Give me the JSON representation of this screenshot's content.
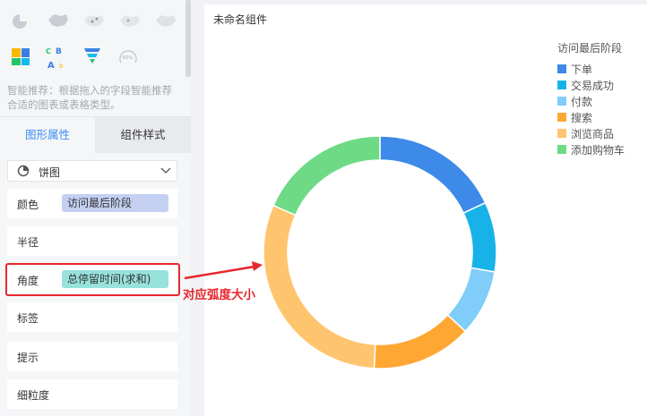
{
  "left_panel": {
    "chart_type_icons": [
      "pie-chart-icon",
      "china-map-icon",
      "china-scatter-map-icon",
      "china-flow-map-icon",
      "china-heat-map-icon",
      "treemap-icon",
      "word-cloud-icon",
      "funnel-icon",
      "gauge-icon"
    ],
    "gauge_label": "60%",
    "hint": "智能推荐：根据拖入的字段智能推荐合适的图表或表格类型。",
    "tabs": [
      {
        "label": "图形属性",
        "active": true
      },
      {
        "label": "组件样式",
        "active": false
      }
    ],
    "chart_select": "饼图",
    "rows": [
      {
        "label": "颜色",
        "field": "访问最后阶段",
        "field_color": "#c3d0f2"
      },
      {
        "label": "半径",
        "field": null
      },
      {
        "label": "角度",
        "field": "总停留时间(求和)",
        "field_color": "#98e2dc"
      },
      {
        "label": "标签"
      },
      {
        "label": "提示"
      },
      {
        "label": "细粒度"
      }
    ],
    "annotation": "对应弧度大小",
    "annotation_color": "#e8262c"
  },
  "card": {
    "title": "未命名组件"
  },
  "chart_data": {
    "type": "pie",
    "donut": true,
    "legend_title": "访问最后阶段",
    "legend_position": "top-right",
    "categories": [
      "下单",
      "交易成功",
      "付款",
      "搜索",
      "浏览商品",
      "添加购物车"
    ],
    "values": [
      18.0,
      9.7,
      9.2,
      13.9,
      30.8,
      18.4
    ],
    "colors": [
      "#3d8ae8",
      "#17b3e8",
      "#7fcdf8",
      "#ffa733",
      "#ffc46e",
      "#6fda85"
    ]
  }
}
